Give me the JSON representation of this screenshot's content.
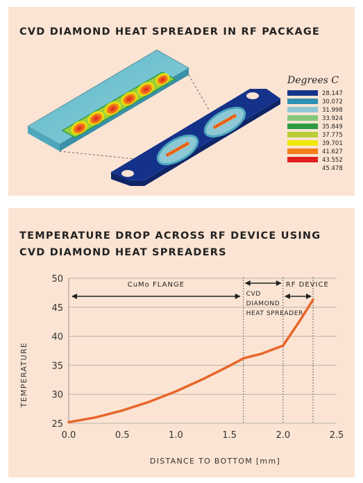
{
  "heatmap": {
    "title": "CVD DIAMOND HEAT SPREADER IN RF PACKAGE",
    "legend_title": "Degrees C",
    "legend_values": [
      "28.147",
      "30.072",
      "31.998",
      "33.924",
      "35.849",
      "37.775",
      "39.701",
      "41.627",
      "43.552",
      "45.478"
    ],
    "legend_colors": [
      "#17358a",
      "#2f8fb5",
      "#8ec8d6",
      "#86c77e",
      "#2e9a44",
      "#b8cd33",
      "#f2e80a",
      "#f07f1a",
      "#e01f1f"
    ]
  },
  "chart_data": {
    "type": "line",
    "title": "TEMPERATURE DROP ACROSS RF DEVICE USING CVD DIAMOND HEAT SPREADERS",
    "xlabel": "DISTANCE TO BOTTOM [mm]",
    "ylabel": "TEMPERATURE",
    "xlim": [
      0,
      2.5
    ],
    "ylim": [
      25,
      50
    ],
    "xticks": [
      "0.0",
      "0.5",
      "1.0",
      "1.5",
      "2.0",
      "2.5"
    ],
    "yticks": [
      "25",
      "30",
      "35",
      "40",
      "45",
      "50"
    ],
    "grid": "horizontal",
    "line_color": "#e8662a",
    "x": [
      0.0,
      0.25,
      0.5,
      0.75,
      1.0,
      1.25,
      1.5,
      1.63,
      1.8,
      2.0,
      2.15,
      2.28
    ],
    "y": [
      25.2,
      26.0,
      27.2,
      28.7,
      30.5,
      32.6,
      34.9,
      36.2,
      37.0,
      38.4,
      42.5,
      46.3
    ],
    "regions": [
      {
        "label": "CuMo FLANGE",
        "from": 0.0,
        "to": 1.63
      },
      {
        "label": "CVD\nDIAMOND\nHEAT SPREADER",
        "from": 1.63,
        "to": 2.0
      },
      {
        "label": "RF DEVICE",
        "from": 2.0,
        "to": 2.28
      }
    ]
  }
}
